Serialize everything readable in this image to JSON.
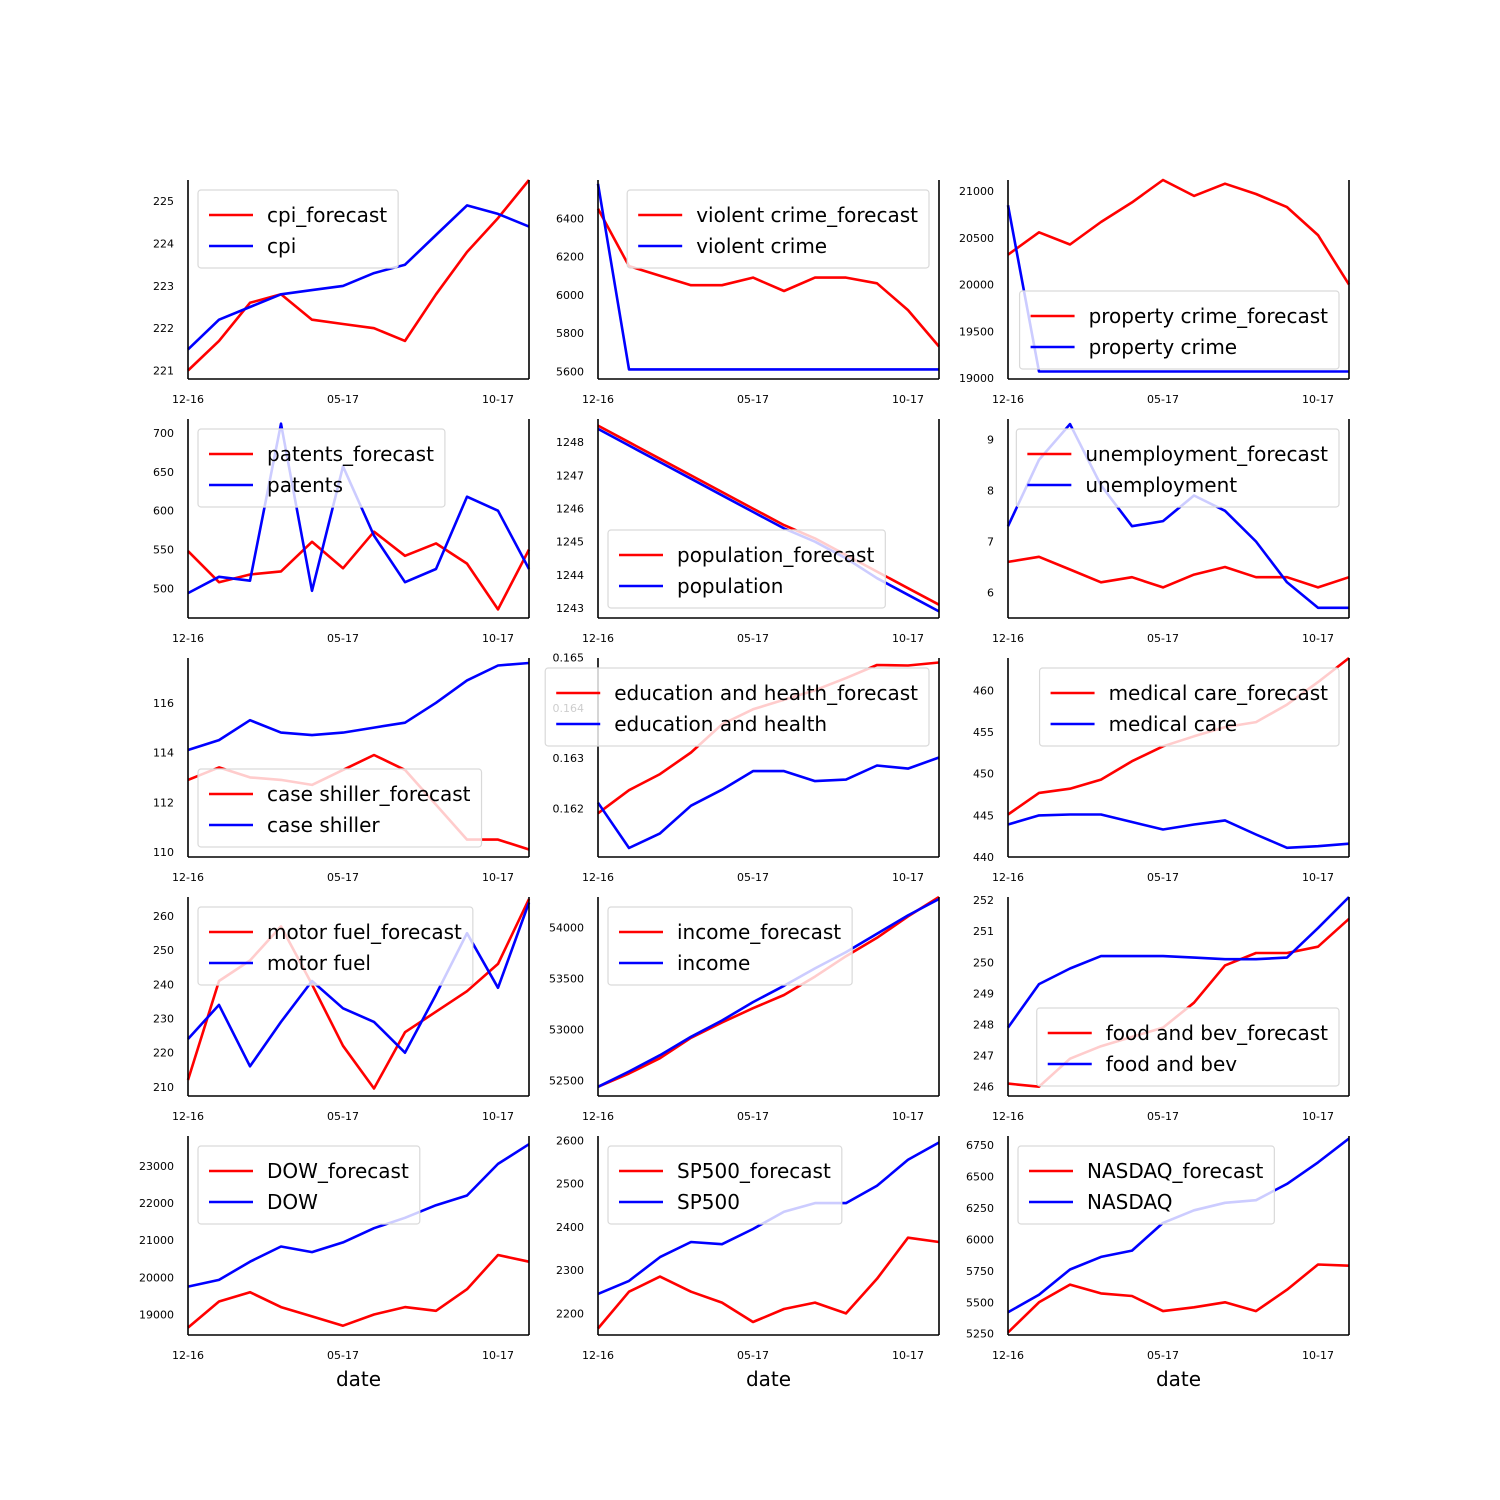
{
  "colors": {
    "forecast": "#ff0000",
    "actual": "#0000ff",
    "axis": "#000000"
  },
  "chart_data": [
    {
      "type": "line",
      "x": [
        "12-16",
        "01-17",
        "02-17",
        "03-17",
        "04-17",
        "05-17",
        "06-17",
        "07-17",
        "08-17",
        "09-17",
        "10-17",
        "11-17"
      ],
      "xticks": [
        "12-16",
        "05-17",
        "10-17"
      ],
      "yticks": [
        221,
        222,
        223,
        224,
        225
      ],
      "ylim": [
        220.8,
        225.5
      ],
      "legend": "top-left",
      "xlabel": "",
      "series": [
        {
          "name": "cpi_forecast",
          "values": [
            221.0,
            221.7,
            222.6,
            222.8,
            222.2,
            222.1,
            222.0,
            221.7,
            222.8,
            223.8,
            224.6,
            225.5
          ]
        },
        {
          "name": "cpi",
          "values": [
            221.5,
            222.2,
            222.5,
            222.8,
            222.9,
            223.0,
            223.3,
            223.5,
            224.2,
            224.9,
            224.7,
            224.4
          ]
        }
      ]
    },
    {
      "type": "line",
      "x": [
        "12-16",
        "01-17",
        "02-17",
        "03-17",
        "04-17",
        "05-17",
        "06-17",
        "07-17",
        "08-17",
        "09-17",
        "10-17",
        "11-17"
      ],
      "xticks": [
        "12-16",
        "05-17",
        "10-17"
      ],
      "yticks": [
        5600,
        5800,
        6000,
        6200,
        6400
      ],
      "ylim": [
        5560,
        6600
      ],
      "legend": "top-right",
      "xlabel": "",
      "series": [
        {
          "name": "violent crime_forecast",
          "values": [
            6450,
            6150,
            6100,
            6050,
            6050,
            6090,
            6020,
            6090,
            6090,
            6060,
            5920,
            5730
          ]
        },
        {
          "name": "violent crime",
          "values": [
            6580,
            5610,
            5610,
            5610,
            5610,
            5610,
            5610,
            5610,
            5610,
            5610,
            5610,
            5610
          ]
        }
      ]
    },
    {
      "type": "line",
      "x": [
        "12-16",
        "01-17",
        "02-17",
        "03-17",
        "04-17",
        "05-17",
        "06-17",
        "07-17",
        "08-17",
        "09-17",
        "10-17",
        "11-17"
      ],
      "xticks": [
        "12-16",
        "05-17",
        "10-17"
      ],
      "yticks": [
        19000,
        19500,
        20000,
        20500,
        21000
      ],
      "ylim": [
        18990,
        21120
      ],
      "legend": "lower-right",
      "xlabel": "",
      "series": [
        {
          "name": "property crime_forecast",
          "values": [
            20320,
            20560,
            20430,
            20670,
            20880,
            21120,
            20950,
            21080,
            20970,
            20830,
            20530,
            20000
          ]
        },
        {
          "name": "property crime",
          "values": [
            20850,
            19070,
            19070,
            19070,
            19070,
            19070,
            19070,
            19070,
            19070,
            19070,
            19070,
            19070
          ]
        }
      ]
    },
    {
      "type": "line",
      "x": [
        "12-16",
        "01-17",
        "02-17",
        "03-17",
        "04-17",
        "05-17",
        "06-17",
        "07-17",
        "08-17",
        "09-17",
        "10-17",
        "11-17"
      ],
      "xticks": [
        "12-16",
        "05-17",
        "10-17"
      ],
      "yticks": [
        500,
        550,
        600,
        650,
        700
      ],
      "ylim": [
        462,
        718
      ],
      "legend": "top-left",
      "xlabel": "",
      "series": [
        {
          "name": "patents_forecast",
          "values": [
            548,
            508,
            518,
            522,
            560,
            526,
            573,
            542,
            558,
            532,
            473,
            550
          ]
        },
        {
          "name": "patents",
          "values": [
            494,
            515,
            510,
            712,
            497,
            657,
            568,
            508,
            525,
            618,
            600,
            525
          ]
        }
      ]
    },
    {
      "type": "line",
      "x": [
        "12-16",
        "01-17",
        "02-17",
        "03-17",
        "04-17",
        "05-17",
        "06-17",
        "07-17",
        "08-17",
        "09-17",
        "10-17",
        "11-17"
      ],
      "xticks": [
        "12-16",
        "05-17",
        "10-17"
      ],
      "yticks": [
        1243,
        1244,
        1245,
        1246,
        1247,
        1248
      ],
      "ylim": [
        1242.7,
        1248.7
      ],
      "legend": "lower-left",
      "xlabel": "",
      "series": [
        {
          "name": "population_forecast",
          "values": [
            1248.5,
            1248.0,
            1247.5,
            1247.0,
            1246.5,
            1246.0,
            1245.5,
            1245.1,
            1244.6,
            1244.1,
            1243.6,
            1243.1
          ]
        },
        {
          "name": "population",
          "values": [
            1248.4,
            1247.9,
            1247.4,
            1246.9,
            1246.4,
            1245.9,
            1245.4,
            1245.0,
            1244.5,
            1243.9,
            1243.4,
            1242.9
          ]
        }
      ]
    },
    {
      "type": "line",
      "x": [
        "12-16",
        "01-17",
        "02-17",
        "03-17",
        "04-17",
        "05-17",
        "06-17",
        "07-17",
        "08-17",
        "09-17",
        "10-17",
        "11-17"
      ],
      "xticks": [
        "12-16",
        "05-17",
        "10-17"
      ],
      "yticks": [
        6,
        7,
        8,
        9
      ],
      "ylim": [
        5.5,
        9.4
      ],
      "legend": "top-right",
      "xlabel": "",
      "series": [
        {
          "name": "unemployment_forecast",
          "values": [
            6.6,
            6.7,
            6.45,
            6.2,
            6.3,
            6.1,
            6.35,
            6.5,
            6.3,
            6.3,
            6.1,
            6.3
          ]
        },
        {
          "name": "unemployment",
          "values": [
            7.3,
            8.6,
            9.3,
            8.1,
            7.3,
            7.4,
            7.9,
            7.6,
            7.0,
            6.2,
            5.7,
            5.7
          ]
        }
      ]
    },
    {
      "type": "line",
      "x": [
        "12-16",
        "01-17",
        "02-17",
        "03-17",
        "04-17",
        "05-17",
        "06-17",
        "07-17",
        "08-17",
        "09-17",
        "10-17",
        "11-17"
      ],
      "xticks": [
        "12-16",
        "05-17",
        "10-17"
      ],
      "yticks": [
        110,
        112,
        114,
        116
      ],
      "ylim": [
        109.8,
        117.8
      ],
      "legend": "lower-left",
      "xlabel": "",
      "series": [
        {
          "name": "case shiller_forecast",
          "values": [
            112.9,
            113.4,
            113.0,
            112.9,
            112.7,
            113.3,
            113.9,
            113.3,
            111.9,
            110.5,
            110.5,
            110.1
          ]
        },
        {
          "name": "case shiller",
          "values": [
            114.1,
            114.5,
            115.3,
            114.8,
            114.7,
            114.8,
            115.0,
            115.2,
            116.0,
            116.9,
            117.5,
            117.6
          ]
        }
      ]
    },
    {
      "type": "line",
      "x": [
        "12-16",
        "01-17",
        "02-17",
        "03-17",
        "04-17",
        "05-17",
        "06-17",
        "07-17",
        "08-17",
        "09-17",
        "10-17",
        "11-17"
      ],
      "xticks": [
        "12-16",
        "05-17",
        "10-17"
      ],
      "yticks": [
        0.162,
        0.163,
        0.164,
        0.165
      ],
      "ylim": [
        0.16103,
        0.16499
      ],
      "legend": "top-right",
      "xlabel": "",
      "series": [
        {
          "name": "education and health_forecast",
          "values": [
            0.1619,
            0.16236,
            0.16268,
            0.16311,
            0.16367,
            0.16397,
            0.16416,
            0.16435,
            0.16459,
            0.16485,
            0.16484,
            0.1649
          ]
        },
        {
          "name": "education and health",
          "values": [
            0.16211,
            0.16121,
            0.1615,
            0.16205,
            0.16237,
            0.16274,
            0.16274,
            0.16254,
            0.16257,
            0.16285,
            0.16279,
            0.16301
          ]
        }
      ]
    },
    {
      "type": "line",
      "x": [
        "12-16",
        "01-17",
        "02-17",
        "03-17",
        "04-17",
        "05-17",
        "06-17",
        "07-17",
        "08-17",
        "09-17",
        "10-17",
        "11-17"
      ],
      "xticks": [
        "12-16",
        "05-17",
        "10-17"
      ],
      "yticks": [
        440,
        445,
        450,
        455,
        460
      ],
      "ylim": [
        440,
        463.9
      ],
      "legend": "top-right",
      "xlabel": "",
      "series": [
        {
          "name": "medical care_forecast",
          "values": [
            445.1,
            447.7,
            448.2,
            449.3,
            451.5,
            453.3,
            454.5,
            455.6,
            456.2,
            458.3,
            461.0,
            463.9
          ]
        },
        {
          "name": "medical care",
          "values": [
            443.9,
            445.0,
            445.1,
            445.1,
            444.2,
            443.3,
            443.9,
            444.4,
            442.7,
            441.1,
            441.3,
            441.6
          ]
        }
      ]
    },
    {
      "type": "line",
      "x": [
        "12-16",
        "01-17",
        "02-17",
        "03-17",
        "04-17",
        "05-17",
        "06-17",
        "07-17",
        "08-17",
        "09-17",
        "10-17",
        "11-17"
      ],
      "xticks": [
        "12-16",
        "05-17",
        "10-17"
      ],
      "yticks": [
        210,
        220,
        230,
        240,
        250,
        260
      ],
      "ylim": [
        207.3,
        265.6
      ],
      "legend": "top-left",
      "xlabel": "",
      "series": [
        {
          "name": "motor fuel_forecast",
          "values": [
            212,
            241,
            247,
            257,
            240,
            222,
            209.5,
            226,
            232,
            238,
            246,
            265
          ]
        },
        {
          "name": "motor fuel",
          "values": [
            224,
            234,
            216,
            229,
            241,
            233,
            229,
            220,
            237,
            255,
            239,
            264
          ]
        }
      ]
    },
    {
      "type": "line",
      "x": [
        "12-16",
        "01-17",
        "02-17",
        "03-17",
        "04-17",
        "05-17",
        "06-17",
        "07-17",
        "08-17",
        "09-17",
        "10-17",
        "11-17"
      ],
      "xticks": [
        "12-16",
        "05-17",
        "10-17"
      ],
      "yticks": [
        52500,
        53000,
        53500,
        54000
      ],
      "ylim": [
        52350,
        54300
      ],
      "legend": "top-left",
      "xlabel": "",
      "series": [
        {
          "name": "income_forecast",
          "values": [
            52440,
            52570,
            52720,
            52920,
            53070,
            53210,
            53340,
            53520,
            53720,
            53900,
            54110,
            54300
          ]
        },
        {
          "name": "income",
          "values": [
            52440,
            52590,
            52750,
            52930,
            53090,
            53270,
            53430,
            53600,
            53760,
            53940,
            54120,
            54280
          ]
        }
      ]
    },
    {
      "type": "line",
      "x": [
        "12-16",
        "01-17",
        "02-17",
        "03-17",
        "04-17",
        "05-17",
        "06-17",
        "07-17",
        "08-17",
        "09-17",
        "10-17",
        "11-17"
      ],
      "xticks": [
        "12-16",
        "05-17",
        "10-17"
      ],
      "yticks": [
        246,
        247,
        248,
        249,
        250,
        251,
        252
      ],
      "ylim": [
        245.7,
        252.1
      ],
      "legend": "lower-right",
      "xlabel": "",
      "series": [
        {
          "name": "food and bev_forecast",
          "values": [
            246.1,
            246.0,
            246.9,
            247.3,
            247.6,
            247.9,
            248.7,
            249.9,
            250.3,
            250.3,
            250.5,
            251.4
          ]
        },
        {
          "name": "food and bev",
          "values": [
            247.9,
            249.3,
            249.8,
            250.2,
            250.2,
            250.2,
            250.15,
            250.1,
            250.1,
            250.15,
            251.1,
            252.1
          ]
        }
      ]
    },
    {
      "type": "line",
      "x": [
        "12-16",
        "01-17",
        "02-17",
        "03-17",
        "04-17",
        "05-17",
        "06-17",
        "07-17",
        "08-17",
        "09-17",
        "10-17",
        "11-17"
      ],
      "xticks": [
        "12-16",
        "05-17",
        "10-17"
      ],
      "yticks": [
        19000,
        20000,
        21000,
        22000,
        23000
      ],
      "ylim": [
        18450,
        23800
      ],
      "legend": "top-left",
      "xlabel": "date",
      "series": [
        {
          "name": "DOW_forecast",
          "values": [
            18650,
            19350,
            19600,
            19200,
            18950,
            18700,
            19000,
            19200,
            19100,
            19680,
            20600,
            20420
          ]
        },
        {
          "name": "DOW",
          "values": [
            19750,
            19930,
            20420,
            20830,
            20680,
            20940,
            21320,
            21600,
            21940,
            22200,
            23050,
            23580
          ]
        }
      ]
    },
    {
      "type": "line",
      "x": [
        "12-16",
        "01-17",
        "02-17",
        "03-17",
        "04-17",
        "05-17",
        "06-17",
        "07-17",
        "08-17",
        "09-17",
        "10-17",
        "11-17"
      ],
      "xticks": [
        "12-16",
        "05-17",
        "10-17"
      ],
      "yticks": [
        2200,
        2300,
        2400,
        2500,
        2600
      ],
      "ylim": [
        2150,
        2610
      ],
      "legend": "top-left",
      "xlabel": "date",
      "series": [
        {
          "name": "SP500_forecast",
          "values": [
            2165,
            2250,
            2285,
            2250,
            2225,
            2180,
            2210,
            2225,
            2200,
            2280,
            2375,
            2365
          ]
        },
        {
          "name": "SP500",
          "values": [
            2245,
            2275,
            2330,
            2365,
            2360,
            2395,
            2435,
            2455,
            2455,
            2495,
            2555,
            2595
          ]
        }
      ]
    },
    {
      "type": "line",
      "x": [
        "12-16",
        "01-17",
        "02-17",
        "03-17",
        "04-17",
        "05-17",
        "06-17",
        "07-17",
        "08-17",
        "09-17",
        "10-17",
        "11-17"
      ],
      "xticks": [
        "12-16",
        "05-17",
        "10-17"
      ],
      "yticks": [
        5250,
        5500,
        5750,
        6000,
        6250,
        6500,
        6750
      ],
      "ylim": [
        5240,
        6820
      ],
      "legend": "top-left",
      "xlabel": "date",
      "series": [
        {
          "name": "NASDAQ_forecast",
          "values": [
            5260,
            5500,
            5640,
            5570,
            5550,
            5430,
            5460,
            5500,
            5430,
            5600,
            5800,
            5790
          ]
        },
        {
          "name": "NASDAQ",
          "values": [
            5420,
            5560,
            5760,
            5860,
            5910,
            6130,
            6230,
            6290,
            6310,
            6440,
            6610,
            6800
          ]
        }
      ]
    }
  ]
}
